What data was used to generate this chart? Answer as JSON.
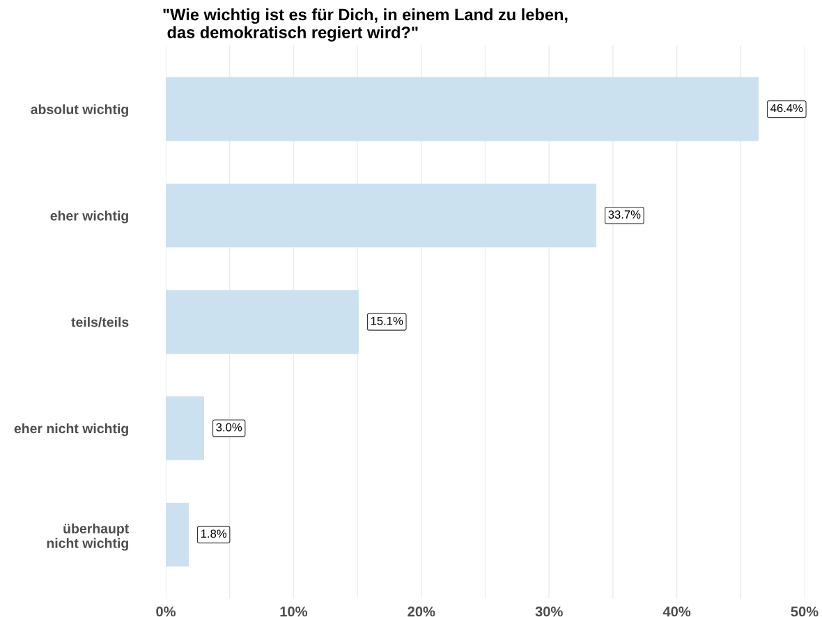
{
  "chart_data": {
    "type": "bar",
    "orientation": "horizontal",
    "title": "\"Wie wichtig ist es für Dich, in einem Land zu leben,\n das demokratisch regiert wird?\"",
    "categories": [
      "absolut wichtig",
      "eher wichtig",
      "teils/teils",
      "eher nicht wichtig",
      "überhaupt\nnicht wichtig"
    ],
    "values": [
      46.4,
      33.7,
      15.1,
      3.0,
      1.8
    ],
    "value_labels": [
      "46.4%",
      "33.7%",
      "15.1%",
      "3.0%",
      "1.8%"
    ],
    "color": "#cce1f0",
    "xlim": [
      0,
      50
    ],
    "xticks": [
      {
        "value": 0,
        "label": "0%"
      },
      {
        "value": 5,
        "label": null
      },
      {
        "value": 10,
        "label": "10%"
      },
      {
        "value": 15,
        "label": null
      },
      {
        "value": 20,
        "label": "20%"
      },
      {
        "value": 25,
        "label": null
      },
      {
        "value": 30,
        "label": "30%"
      },
      {
        "value": 35,
        "label": null
      },
      {
        "value": 40,
        "label": "40%"
      },
      {
        "value": 45,
        "label": null
      },
      {
        "value": 50,
        "label": "50%"
      }
    ],
    "grid": "x",
    "legend": false
  }
}
